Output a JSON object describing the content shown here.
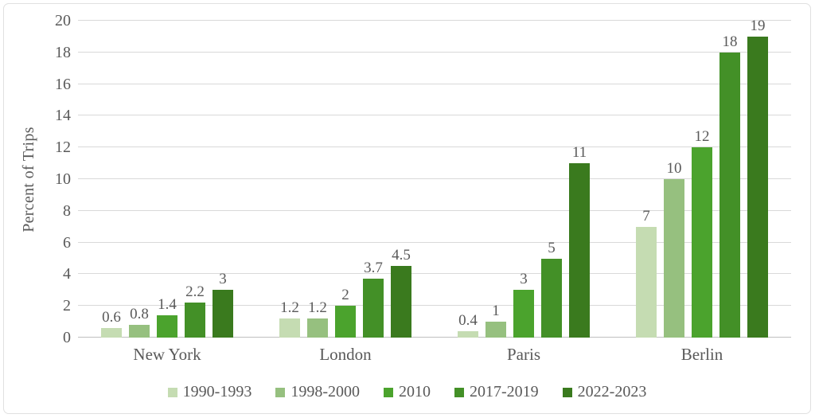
{
  "chart_data": {
    "type": "bar",
    "title": "",
    "xlabel": "",
    "ylabel": "Percent of Trips",
    "categories": [
      "New York",
      "London",
      "Paris",
      "Berlin"
    ],
    "series": [
      {
        "name": "1990-1993",
        "color": "#c5dcb2",
        "values": [
          0.6,
          1.2,
          0.4,
          7
        ]
      },
      {
        "name": "1998-2000",
        "color": "#96c07f",
        "values": [
          0.8,
          1.2,
          1,
          10
        ]
      },
      {
        "name": "2010",
        "color": "#4ba32d",
        "values": [
          1.4,
          2,
          3,
          12
        ]
      },
      {
        "name": "2017-2019",
        "color": "#439027",
        "values": [
          2.2,
          3.7,
          5,
          18
        ]
      },
      {
        "name": "2022-2023",
        "color": "#3a7a1e",
        "values": [
          3,
          4.5,
          11,
          19
        ]
      }
    ],
    "ylim": [
      0,
      20
    ],
    "yticks": [
      0,
      2,
      4,
      6,
      8,
      10,
      12,
      14,
      16,
      18,
      20
    ],
    "grid": true,
    "value_labels": true,
    "legend_position": "bottom"
  },
  "colors": {
    "text": "#595959",
    "gridline": "#d9d9d9",
    "axis_line": "#bfbfbf",
    "card_border": "#e0e0e0",
    "background": "#ffffff"
  }
}
